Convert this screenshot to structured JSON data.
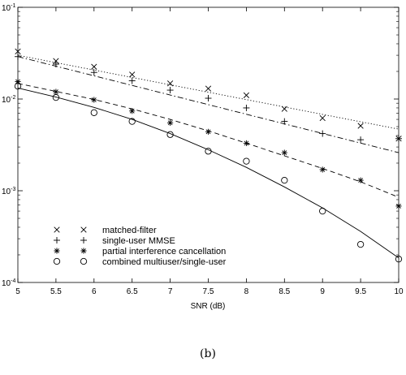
{
  "chart_data": {
    "type": "line",
    "x_scale": "linear",
    "y_scale": "log",
    "xlim": [
      5,
      10
    ],
    "ylim": [
      0.0001,
      0.1
    ],
    "xlabel": "SNR (dB)",
    "ylabel": "",
    "x_ticks": [
      "5",
      "5.5",
      "6",
      "6.5",
      "7",
      "7.5",
      "8",
      "8.5",
      "9",
      "9.5",
      "10"
    ],
    "y_ticks": [
      {
        "value": 0.1,
        "base": "10",
        "exp": "-1"
      },
      {
        "value": 0.01,
        "base": "10",
        "exp": "-2"
      },
      {
        "value": 0.001,
        "base": "10",
        "exp": "-3"
      },
      {
        "value": 0.0001,
        "base": "10",
        "exp": "-4"
      }
    ],
    "grid": false,
    "legend_position": "bottom-left",
    "caption": "(b)",
    "series": [
      {
        "name": "matched-filter",
        "marker": "x",
        "line_style": "dotted",
        "line": {
          "x": [
            5,
            10
          ],
          "y": [
            0.03,
            0.0047
          ]
        },
        "points": {
          "x": [
            5,
            5.5,
            6,
            6.5,
            7,
            7.5,
            8,
            8.5,
            9,
            9.5,
            10
          ],
          "y": [
            0.033,
            0.026,
            0.0225,
            0.0185,
            0.0148,
            0.013,
            0.011,
            0.0078,
            0.0062,
            0.0051,
            0.0037
          ]
        }
      },
      {
        "name": "single-user MMSE",
        "marker": "+",
        "line_style": "dash-dot",
        "line": {
          "x": [
            5,
            10
          ],
          "y": [
            0.029,
            0.0026
          ]
        },
        "points": {
          "x": [
            5,
            5.5,
            6,
            6.5,
            7,
            7.5,
            8,
            8.5,
            9,
            9.5,
            10
          ],
          "y": [
            0.029,
            0.024,
            0.0195,
            0.0158,
            0.0125,
            0.0102,
            0.008,
            0.0057,
            0.0042,
            0.0036,
            0.0037
          ]
        }
      },
      {
        "name": "partial interference cancellation",
        "marker": "*",
        "line_style": "dashed",
        "line": {
          "x": [
            5,
            5.5,
            6,
            6.5,
            7,
            7.5,
            8,
            8.5,
            9,
            9.5,
            10
          ],
          "y": [
            0.0148,
            0.0121,
            0.0099,
            0.0078,
            0.006,
            0.0045,
            0.0033,
            0.0024,
            0.00175,
            0.00125,
            0.00085
          ]
        },
        "points": {
          "x": [
            5,
            5.5,
            6,
            6.5,
            7,
            7.5,
            8,
            8.5,
            9,
            9.5,
            10
          ],
          "y": [
            0.0155,
            0.012,
            0.0098,
            0.0074,
            0.0055,
            0.0044,
            0.0033,
            0.0026,
            0.0017,
            0.0013,
            0.00068
          ]
        }
      },
      {
        "name": "combined multiuser/single-user",
        "marker": "o",
        "line_style": "solid",
        "line": {
          "x": [
            5,
            5.5,
            6,
            6.5,
            7,
            7.5,
            8,
            8.5,
            9,
            9.5,
            10
          ],
          "y": [
            0.0132,
            0.0105,
            0.0081,
            0.006,
            0.0042,
            0.0028,
            0.0018,
            0.0011,
            0.00065,
            0.00036,
            0.000185
          ]
        },
        "points": {
          "x": [
            5,
            5.5,
            6,
            6.5,
            7,
            7.5,
            8,
            8.5,
            9,
            9.5,
            10
          ],
          "y": [
            0.0138,
            0.0104,
            0.0071,
            0.0057,
            0.0041,
            0.0027,
            0.0021,
            0.0013,
            0.0006,
            0.00026,
            0.00018
          ]
        }
      }
    ]
  }
}
